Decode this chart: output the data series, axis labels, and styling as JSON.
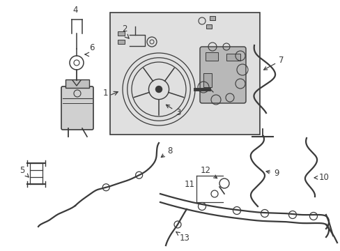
{
  "bg_color": "#ffffff",
  "line_color": "#3a3a3a",
  "box_bg": "#e8e8e8",
  "figsize": [
    4.89,
    3.6
  ],
  "dpi": 100,
  "xlim": [
    0,
    489
  ],
  "ylim": [
    0,
    360
  ]
}
